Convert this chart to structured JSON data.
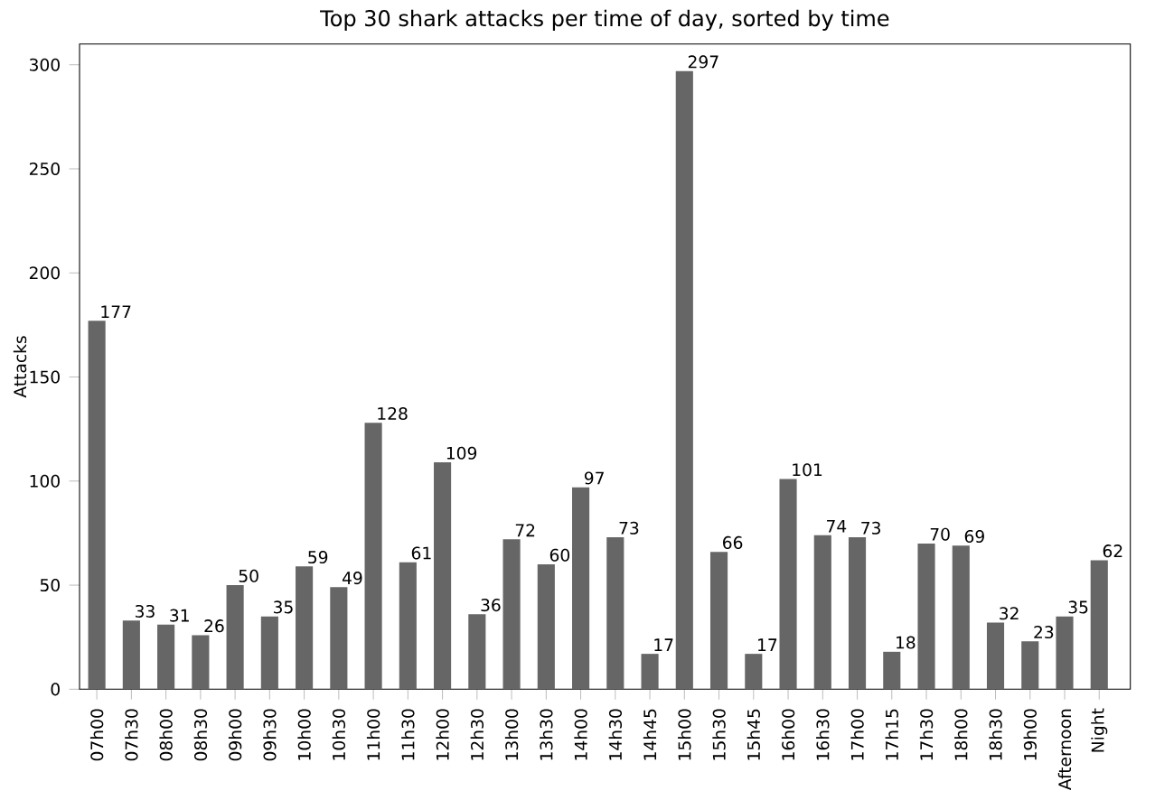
{
  "chart_data": {
    "type": "bar",
    "title": "Top 30 shark attacks per time of day, sorted by time",
    "ylabel": "Attacks",
    "categories": [
      "07h00",
      "07h30",
      "08h00",
      "08h30",
      "09h00",
      "09h30",
      "10h00",
      "10h30",
      "11h00",
      "11h30",
      "12h00",
      "12h30",
      "13h00",
      "13h30",
      "14h00",
      "14h30",
      "14h45",
      "15h00",
      "15h30",
      "15h45",
      "16h00",
      "16h30",
      "17h00",
      "17h15",
      "17h30",
      "18h00",
      "18h30",
      "19h00",
      "Afternoon",
      "Night"
    ],
    "values": [
      177,
      33,
      31,
      26,
      50,
      35,
      59,
      49,
      128,
      61,
      109,
      36,
      72,
      60,
      97,
      73,
      17,
      297,
      66,
      17,
      101,
      74,
      73,
      18,
      70,
      69,
      32,
      23,
      35,
      62
    ],
    "color": "#666666",
    "ylim": [
      0,
      310
    ],
    "yticks": [
      0,
      50,
      100,
      150,
      200,
      250,
      300
    ],
    "data_labels": true,
    "grid": false
  }
}
